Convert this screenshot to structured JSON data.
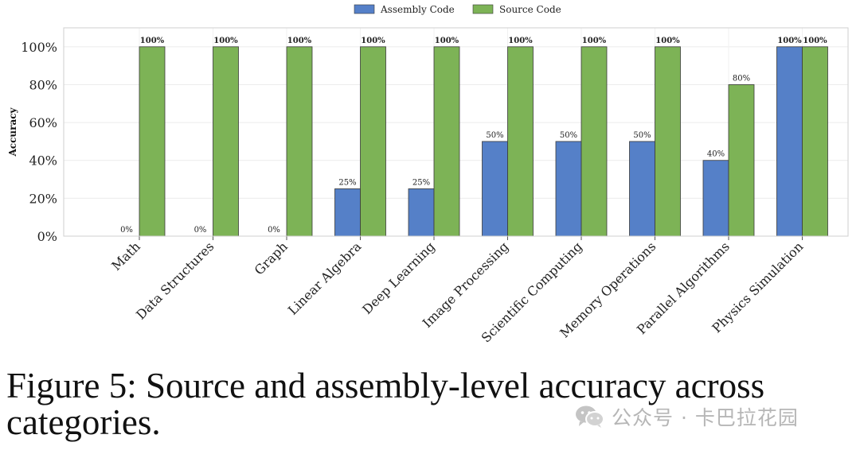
{
  "chart_data": {
    "type": "bar",
    "title": "",
    "xlabel": "",
    "ylabel": "Accuracy",
    "ylim": [
      0,
      110
    ],
    "yticks": [
      0,
      20,
      40,
      60,
      80,
      100
    ],
    "ytick_labels": [
      "0%",
      "20%",
      "40%",
      "60%",
      "80%",
      "100%"
    ],
    "legend_position": "top-center",
    "grid": true,
    "categories": [
      "Math",
      "Data Structures",
      "Graph",
      "Linear Algebra",
      "Deep Learning",
      "Image Processing",
      "Scientific Computing",
      "Memory Operations",
      "Parallel Algorithms",
      "Physics Simulation"
    ],
    "series": [
      {
        "name": "Assembly Code",
        "color": "#5580c8",
        "values": [
          0,
          0,
          0,
          25,
          25,
          50,
          50,
          50,
          40,
          100
        ],
        "labels": [
          "0%",
          "0%",
          "0%",
          "25%",
          "25%",
          "50%",
          "50%",
          "50%",
          "40%",
          "100%"
        ]
      },
      {
        "name": "Source Code",
        "color": "#7db356",
        "values": [
          100,
          100,
          100,
          100,
          100,
          100,
          100,
          100,
          80,
          100
        ],
        "labels": [
          "100%",
          "100%",
          "100%",
          "100%",
          "100%",
          "100%",
          "100%",
          "100%",
          "80%",
          "100%"
        ]
      }
    ]
  },
  "caption": "Figure 5: Source and assembly-level accuracy across categories.",
  "watermark": {
    "icon": "wechat-icon",
    "text": "公众号 · 卡巴拉花园"
  }
}
